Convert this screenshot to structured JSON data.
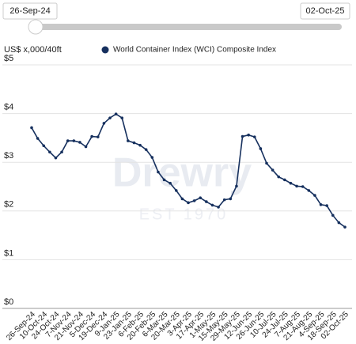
{
  "slider": {
    "start": "26-Sep-24",
    "end": "02-Oct-25"
  },
  "chart_data": {
    "type": "line",
    "y_label": "US$ x,000/40ft",
    "watermark": {
      "brand": "Drewry",
      "est": "EST 1970"
    },
    "categories": [
      "26-Sep-24",
      null,
      "10-Oct-24",
      null,
      "24-Oct-24",
      null,
      "7-Nov-24",
      null,
      "21-Nov-24",
      null,
      "5-Dec-24",
      null,
      "19-Dec-24",
      null,
      "9-Jan-25",
      null,
      "23-Jan-25",
      null,
      "6-Feb-25",
      null,
      "20-Feb-25",
      null,
      "6-Mar-25",
      null,
      "20-Mar-25",
      null,
      "3-Apr-25",
      null,
      "17-Apr-25",
      null,
      "1-May-25",
      null,
      "15-May-25",
      null,
      "29-May-25",
      null,
      "12-Jun-25",
      null,
      "26-Jun-25",
      null,
      "10-Jul-25",
      null,
      "24-Jul-25",
      null,
      "7-Aug-25",
      null,
      "21-Aug-25",
      null,
      "4-Sep-25",
      null,
      "18-Sep-25",
      null,
      "02-Oct-25"
    ],
    "series": [
      {
        "name": "World Container Index (WCI) Composite Index",
        "color": "#16305e",
        "values": [
          3.71,
          3.49,
          3.34,
          3.21,
          3.09,
          3.21,
          3.44,
          3.44,
          3.41,
          3.32,
          3.53,
          3.52,
          3.8,
          3.91,
          3.99,
          3.91,
          3.44,
          3.4,
          3.35,
          3.26,
          3.1,
          2.8,
          2.64,
          2.57,
          2.42,
          2.25,
          2.17,
          2.21,
          2.27,
          2.19,
          2.12,
          2.08,
          2.23,
          2.25,
          2.51,
          3.53,
          3.56,
          3.52,
          3.28,
          2.98,
          2.84,
          2.7,
          2.64,
          2.57,
          2.51,
          2.5,
          2.42,
          2.32,
          2.13,
          2.11,
          1.91,
          1.76,
          1.67
        ]
      }
    ],
    "ylim": [
      0,
      5
    ],
    "yticks": [
      {
        "value": 0,
        "label": "$0"
      },
      {
        "value": 1,
        "label": "$1"
      },
      {
        "value": 2,
        "label": "$2"
      },
      {
        "value": 3,
        "label": "$3"
      },
      {
        "value": 4,
        "label": "$4"
      },
      {
        "value": 5,
        "label": "$5"
      }
    ],
    "grid": true
  }
}
